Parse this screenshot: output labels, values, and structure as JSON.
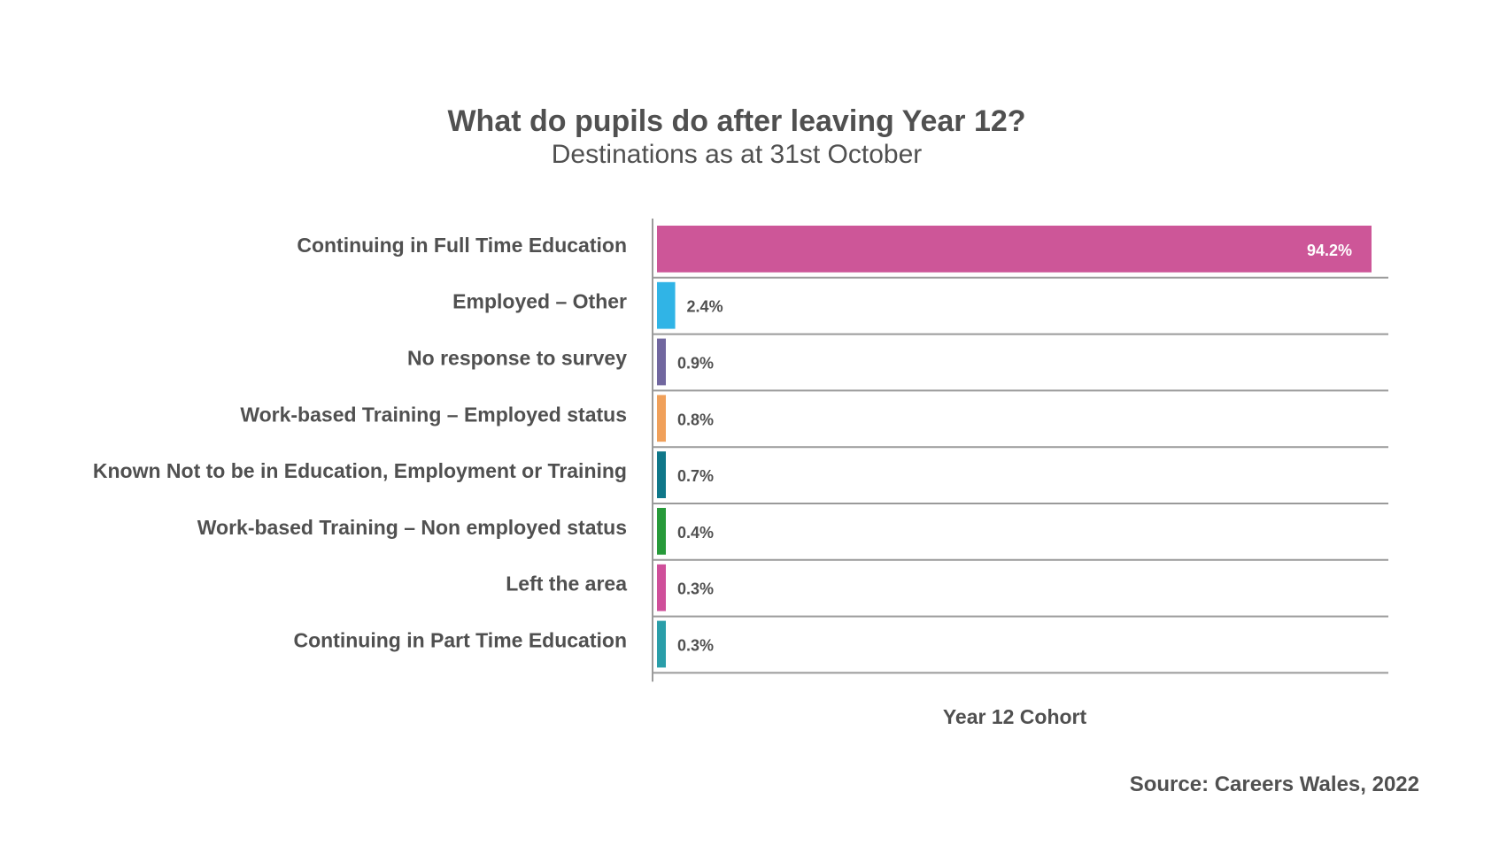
{
  "chart_data": {
    "type": "bar",
    "orientation": "horizontal",
    "title": "What do pupils do after leaving Year 12?",
    "subtitle": "Destinations as at 31st October",
    "xlabel": "Year 12 Cohort",
    "source": "Source: Careers Wales, 2022",
    "categories": [
      "Continuing in Full Time Education",
      "Employed – Other",
      "No response to survey",
      "Work-based Training – Employed status",
      "Known Not to be in Education, Employment or Training",
      "Work-based Training – Non employed status",
      "Left the area",
      "Continuing in Part Time Education"
    ],
    "values": [
      94.2,
      2.4,
      0.9,
      0.8,
      0.7,
      0.4,
      0.3,
      0.3
    ],
    "data_labels": [
      "94.2%",
      "2.4%",
      "0.9%",
      "0.8%",
      "0.7%",
      "0.4%",
      "0.3%",
      "0.3%"
    ],
    "colors": [
      "#cd5698",
      "#30b4e6",
      "#71679f",
      "#f0a05a",
      "#0f7789",
      "#279a3a",
      "#cf4f9a",
      "#2a9ea9"
    ],
    "xlim": [
      0,
      94.2
    ],
    "grid": "horizontal row separators",
    "legend": "none"
  }
}
